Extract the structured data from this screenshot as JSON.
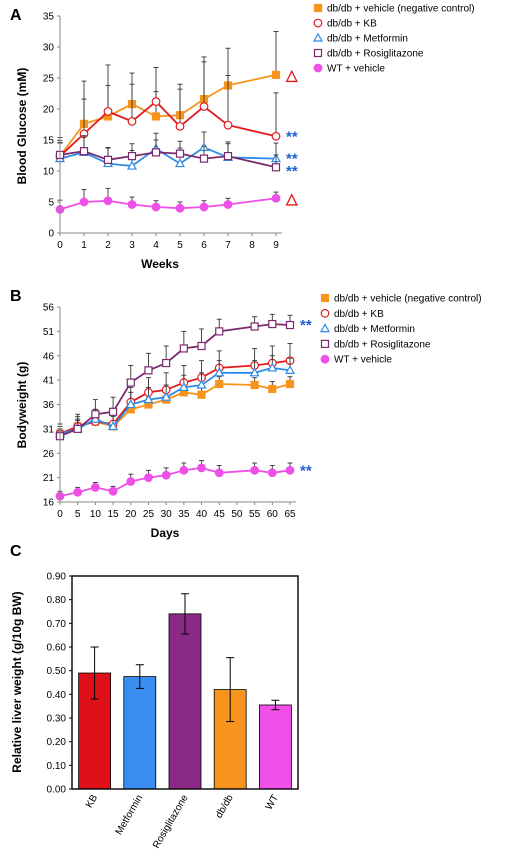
{
  "chart_data": [
    {
      "panel": "A",
      "type": "line",
      "xlabel": "Weeks",
      "ylabel": "Blood Glucose (mM)",
      "xlim": [
        0,
        9
      ],
      "ylim": [
        0,
        35
      ],
      "xticks": [
        0,
        1,
        2,
        3,
        4,
        5,
        6,
        7,
        8,
        9
      ],
      "yticks": [
        0,
        5,
        10,
        15,
        20,
        25,
        30,
        35
      ],
      "legend_position": "top-right, outside plot",
      "series": [
        {
          "name": "db/db + vehicle (negative control)",
          "color": "#F7941D",
          "marker": "square",
          "x": [
            0,
            1,
            2,
            3,
            4,
            5,
            6,
            7,
            9
          ],
          "values": [
            12.4,
            17.6,
            18.8,
            20.8,
            18.8,
            19.0,
            21.6,
            23.8,
            25.5
          ],
          "err": [
            3.0,
            4.0,
            5.0,
            5.0,
            4.0,
            5.0,
            6.0,
            6.0,
            7.0
          ]
        },
        {
          "name": "db/db + KB",
          "color": "#E31A1C",
          "marker": "circle-open",
          "x": [
            0,
            1,
            2,
            3,
            4,
            5,
            6,
            7,
            9
          ],
          "values": [
            12.4,
            16.0,
            19.6,
            18.0,
            21.2,
            17.2,
            20.4,
            17.4,
            15.6
          ],
          "err": [
            2.5,
            8.5,
            7.5,
            6.0,
            5.5,
            6.0,
            8.0,
            8.0,
            7.0
          ]
        },
        {
          "name": "db/db + Metformin",
          "color": "#2E8BE6",
          "marker": "triangle-open",
          "x": [
            0,
            1,
            2,
            3,
            4,
            5,
            6,
            7,
            9
          ],
          "values": [
            12.0,
            13.0,
            11.2,
            10.8,
            13.6,
            11.2,
            13.8,
            12.2,
            12.0
          ],
          "err": [
            2.5,
            2.5,
            2.5,
            2.5,
            2.5,
            2.5,
            2.5,
            2.5,
            2.5
          ]
        },
        {
          "name": "db/db + Rosiglitazone",
          "color": "#7B2A6F",
          "marker": "square-open",
          "x": [
            0,
            1,
            2,
            3,
            4,
            5,
            6,
            7,
            9
          ],
          "values": [
            12.6,
            13.2,
            11.8,
            12.4,
            13.0,
            12.8,
            12.0,
            12.4,
            10.6
          ],
          "err": [
            2.0,
            2.5,
            2.0,
            2.0,
            2.0,
            2.0,
            2.0,
            2.0,
            2.0
          ]
        },
        {
          "name": "WT + vehicle",
          "color": "#EE4FE7",
          "marker": "circle",
          "x": [
            0,
            1,
            2,
            3,
            4,
            5,
            6,
            7,
            9
          ],
          "values": [
            3.8,
            5.0,
            5.2,
            4.6,
            4.2,
            4.0,
            4.2,
            4.6,
            5.6
          ],
          "err": [
            1.5,
            2.0,
            2.0,
            1.2,
            1.0,
            1.0,
            1.0,
            1.0,
            1.0
          ]
        }
      ],
      "annotations": [
        {
          "text": "△",
          "y": 25.5,
          "color": "#E31A1C"
        },
        {
          "text": "**",
          "y": 15.6,
          "color": "#1F5FD0"
        },
        {
          "text": "**",
          "y": 12.0,
          "color": "#1F5FD0"
        },
        {
          "text": "**",
          "y": 10.0,
          "color": "#1F5FD0"
        },
        {
          "text": "△",
          "y": 5.6,
          "color": "#E31A1C"
        }
      ]
    },
    {
      "panel": "B",
      "type": "line",
      "xlabel": "Days",
      "ylabel": "Bodyweight (g)",
      "xlim": [
        0,
        65
      ],
      "ylim": [
        16,
        56
      ],
      "xticks": [
        0,
        5,
        10,
        15,
        20,
        25,
        30,
        35,
        40,
        45,
        50,
        55,
        60,
        65
      ],
      "yticks": [
        16,
        21,
        26,
        31,
        36,
        41,
        46,
        51,
        56
      ],
      "legend_position": "top-right, inside plot",
      "series": [
        {
          "name": "db/db + vehicle (negative control)",
          "color": "#F7941D",
          "marker": "square",
          "x": [
            0,
            5,
            10,
            15,
            20,
            25,
            30,
            35,
            40,
            45,
            55,
            60,
            65
          ],
          "values": [
            30.0,
            31.5,
            32.5,
            31.5,
            35.0,
            36.0,
            37.0,
            38.5,
            38.0,
            40.2,
            40.0,
            39.2,
            40.2
          ],
          "err": [
            1.0,
            1.2,
            1.2,
            1.0,
            1.5,
            1.5,
            1.5,
            1.5,
            1.5,
            1.5,
            1.5,
            1.5,
            1.5
          ]
        },
        {
          "name": "db/db + KB",
          "color": "#E31A1C",
          "marker": "circle-open",
          "x": [
            0,
            5,
            10,
            15,
            20,
            25,
            30,
            35,
            40,
            45,
            55,
            60,
            65
          ],
          "values": [
            30.0,
            31.5,
            32.5,
            32.0,
            36.5,
            38.5,
            39.0,
            40.5,
            41.5,
            43.5,
            44.0,
            44.5,
            45.0
          ],
          "err": [
            2.0,
            2.5,
            2.5,
            2.5,
            3.0,
            3.0,
            3.5,
            3.5,
            3.5,
            3.5,
            3.5,
            3.5,
            3.5
          ]
        },
        {
          "name": "db/db + Metformin",
          "color": "#2E8BE6",
          "marker": "triangle-open",
          "x": [
            0,
            5,
            10,
            15,
            20,
            25,
            30,
            35,
            40,
            45,
            55,
            60,
            65
          ],
          "values": [
            30.0,
            31.0,
            33.0,
            31.5,
            36.0,
            37.0,
            37.5,
            39.5,
            40.0,
            42.5,
            42.5,
            43.5,
            43.0
          ],
          "err": [
            1.5,
            2.0,
            2.0,
            2.0,
            2.5,
            2.5,
            2.5,
            2.5,
            2.5,
            2.5,
            2.5,
            2.5,
            2.5
          ]
        },
        {
          "name": "db/db + Rosiglitazone",
          "color": "#7B2A6F",
          "marker": "square-open",
          "x": [
            0,
            5,
            10,
            15,
            20,
            25,
            30,
            35,
            40,
            45,
            55,
            60,
            65
          ],
          "values": [
            29.5,
            31.0,
            34.0,
            34.5,
            40.5,
            43.0,
            44.5,
            47.5,
            48.0,
            51.0,
            52.0,
            52.5,
            52.3
          ],
          "err": [
            2.5,
            2.5,
            3.0,
            3.0,
            3.5,
            3.5,
            3.5,
            3.5,
            3.5,
            2.5,
            2.0,
            2.0,
            2.0
          ]
        },
        {
          "name": "WT + vehicle",
          "color": "#EE4FE7",
          "marker": "circle",
          "x": [
            0,
            5,
            10,
            15,
            20,
            25,
            30,
            35,
            40,
            45,
            55,
            60,
            65
          ],
          "values": [
            17.2,
            18.0,
            19.0,
            18.2,
            20.2,
            21.0,
            21.5,
            22.5,
            23.0,
            22.0,
            22.5,
            22.0,
            22.5
          ],
          "err": [
            1.0,
            1.0,
            1.0,
            1.0,
            1.5,
            1.5,
            1.5,
            1.5,
            1.5,
            1.5,
            1.5,
            1.5,
            1.5
          ]
        }
      ],
      "annotations": [
        {
          "text": "**",
          "y": 52.3,
          "color": "#1F5FD0"
        },
        {
          "text": "**",
          "y": 22.5,
          "color": "#1F5FD0"
        }
      ]
    },
    {
      "panel": "C",
      "type": "bar",
      "ylabel": "Relative liver weight (g/10g BW)",
      "ylim": [
        0,
        0.9
      ],
      "yticks": [
        "0.00",
        "0.10",
        "0.20",
        "0.30",
        "0.40",
        "0.50",
        "0.60",
        "0.70",
        "0.80",
        "0.90"
      ],
      "categories": [
        "KB",
        "Metformin",
        "Rosiglitazone",
        "db/db",
        "WT"
      ],
      "values": [
        0.49,
        0.475,
        0.74,
        0.42,
        0.355
      ],
      "err": [
        0.11,
        0.05,
        0.085,
        0.135,
        0.02
      ],
      "colors": [
        "#E0101A",
        "#3A8EF0",
        "#8A2A86",
        "#F7941D",
        "#F050E8"
      ]
    }
  ]
}
